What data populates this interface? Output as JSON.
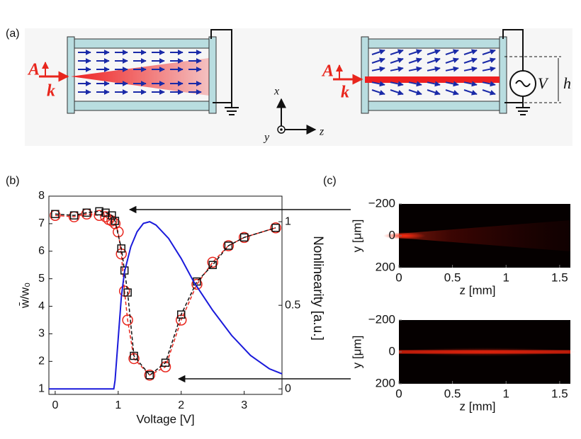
{
  "panel_a": {
    "label": "(a)",
    "left_A": "A",
    "left_k": "k",
    "right_A": "A",
    "right_k": "k",
    "V": "V",
    "h": "h",
    "axis_x": "x",
    "axis_y": "y",
    "axis_z": "z"
  },
  "panel_b_label": "(b)",
  "panel_c_label": "(c)",
  "chart_data": [
    {
      "type": "line",
      "xlabel": "Voltage [V]",
      "ylabel": "w̄/w₀",
      "y2label": "Nonlinearity [a.u.]",
      "xlim": [
        -0.1,
        3.6
      ],
      "xticks": [
        0,
        1,
        2,
        3
      ],
      "ylim": [
        0.8,
        8
      ],
      "yticks": [
        1,
        2,
        3,
        4,
        5,
        6,
        7,
        8
      ],
      "y2lim": [
        -0.033,
        1.153
      ],
      "y2ticks": [
        0,
        0.5,
        1
      ],
      "y2color": "#1a1adb",
      "series": [
        {
          "color": "#e8261d",
          "marker": "circle",
          "dashed": true,
          "x": [
            0,
            0.3,
            0.5,
            0.7,
            0.8,
            0.85,
            0.9,
            0.95,
            1.0,
            1.05,
            1.1,
            1.15,
            1.25,
            1.5,
            1.75,
            2.0,
            2.25,
            2.5,
            2.75,
            3.0,
            3.5
          ],
          "values": [
            7.3,
            7.25,
            7.35,
            7.3,
            7.25,
            7.15,
            7.1,
            7.0,
            6.7,
            5.9,
            4.55,
            3.5,
            2.1,
            1.5,
            1.8,
            3.5,
            4.8,
            5.6,
            6.2,
            6.5,
            6.85
          ]
        },
        {
          "color": "#111111",
          "marker": "square",
          "dashed": true,
          "x": [
            0,
            0.3,
            0.5,
            0.7,
            0.8,
            0.9,
            0.95,
            1.05,
            1.1,
            1.15,
            1.25,
            1.5,
            1.75,
            2.0,
            2.25,
            2.5,
            2.75,
            3.0,
            3.5
          ],
          "values": [
            7.35,
            7.3,
            7.4,
            7.45,
            7.4,
            7.3,
            7.1,
            6.1,
            5.3,
            4.5,
            2.2,
            1.5,
            1.95,
            3.7,
            4.9,
            5.5,
            6.2,
            6.5,
            6.85
          ]
        },
        {
          "color": "#1a1adb",
          "axis": "y2",
          "x": [
            -0.1,
            0.93,
            0.95,
            1.0,
            1.05,
            1.1,
            1.2,
            1.3,
            1.4,
            1.5,
            1.6,
            1.8,
            2.0,
            2.2,
            2.5,
            2.8,
            3.1,
            3.4,
            3.6
          ],
          "values": [
            0,
            0,
            0.05,
            0.3,
            0.55,
            0.7,
            0.85,
            0.94,
            0.99,
            1.0,
            0.98,
            0.9,
            0.78,
            0.64,
            0.47,
            0.32,
            0.2,
            0.12,
            0.09
          ]
        }
      ]
    },
    {
      "type": "heatmap",
      "xlabel": "z [mm]",
      "ylabel": "y [μm]",
      "xlim": [
        0,
        1.6
      ],
      "xticks": [
        0,
        0.5,
        1,
        1.5
      ],
      "ylim": [
        -200,
        200
      ],
      "invert_y": true,
      "yticks": [
        {
          "value": -200,
          "label": "−200"
        },
        0,
        200
      ]
    },
    {
      "type": "heatmap",
      "xlabel": "z [mm]",
      "ylabel": "y [μm]",
      "xlim": [
        0,
        1.6
      ],
      "xticks": [
        0,
        0.5,
        1,
        1.5
      ],
      "ylim": [
        -200,
        200
      ],
      "invert_y": true,
      "yticks": [
        {
          "value": -200,
          "label": "−200"
        },
        0,
        200
      ]
    }
  ]
}
